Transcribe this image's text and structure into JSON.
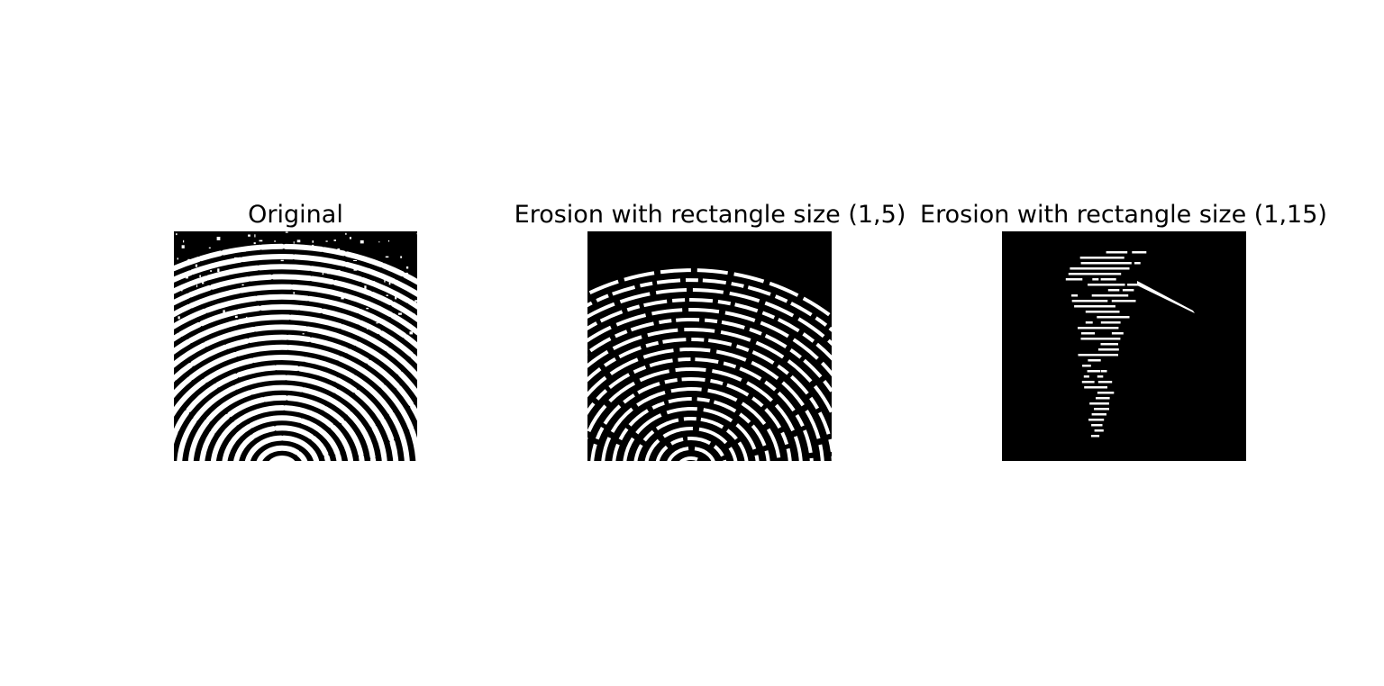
{
  "figure": {
    "panels": [
      {
        "title": "Original",
        "image": "fingerprint-original",
        "colors": {
          "background": "#000000",
          "ridge": "#ffffff"
        }
      },
      {
        "title": "Erosion with rectangle size (1,5)",
        "image": "fingerprint-eroded-1x5",
        "colors": {
          "background": "#000000",
          "ridge": "#ffffff"
        }
      },
      {
        "title": "Erosion with rectangle size (1,15)",
        "image": "fingerprint-eroded-1x15",
        "colors": {
          "background": "#000000",
          "ridge": "#ffffff"
        }
      }
    ]
  }
}
